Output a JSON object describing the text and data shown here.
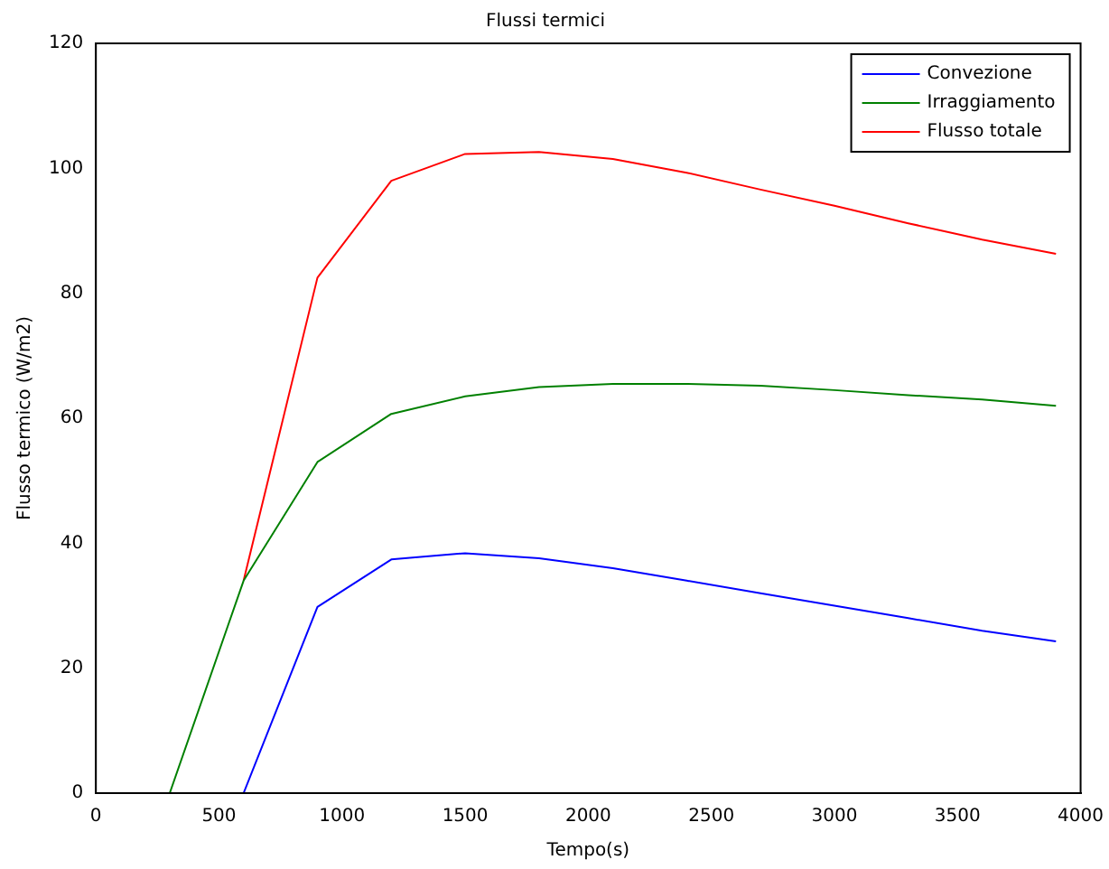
{
  "chart_data": {
    "type": "line",
    "title": "Flussi termici",
    "xlabel": "Tempo(s)",
    "ylabel": "Flusso termico (W/m2)",
    "xlim": [
      0,
      4000
    ],
    "xticks": [
      0,
      500,
      1000,
      1500,
      2000,
      2500,
      3000,
      3500,
      4000
    ],
    "ylim": [
      0,
      120
    ],
    "yticks": [
      0,
      20,
      40,
      60,
      80,
      100,
      120
    ],
    "grid": false,
    "legend": "top right",
    "marker": "none",
    "line_style": "solid",
    "series": [
      {
        "name": "Convezione",
        "color": "#0000ff",
        "x": [
          600,
          900,
          1200,
          1500,
          1800,
          2100,
          2400,
          2700,
          3000,
          3300,
          3600,
          3900
        ],
        "values": [
          0,
          29.8,
          37.4,
          38.4,
          37.6,
          36,
          34,
          32,
          30,
          28,
          26,
          24.3
        ]
      },
      {
        "name": "Irraggiamento",
        "color": "#008000",
        "x": [
          300,
          600,
          900,
          1200,
          1500,
          1800,
          2100,
          2400,
          2700,
          3000,
          3300,
          3600,
          3900
        ],
        "values": [
          0,
          34,
          53,
          60.7,
          63.5,
          65,
          65.5,
          65.5,
          65.2,
          64.5,
          63.7,
          63,
          62
        ]
      },
      {
        "name": "Flusso totale",
        "color": "#ff0000",
        "x": [
          600,
          900,
          1200,
          1500,
          1800,
          2100,
          2400,
          2700,
          3000,
          3300,
          3600,
          3900
        ],
        "values": [
          34,
          82.5,
          98,
          102.3,
          102.6,
          101.5,
          99.3,
          96.6,
          94,
          91.2,
          88.6,
          86.3
        ]
      }
    ]
  }
}
